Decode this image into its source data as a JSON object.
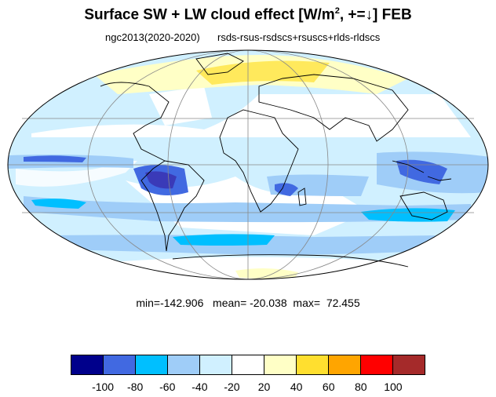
{
  "title": {
    "main": "Surface SW + LW cloud effect [W/m",
    "sup": "2",
    "rest": ", +=↓]  FEB"
  },
  "subtitle": {
    "left": "ngc2013(2020-2020)",
    "right": "rsds-rsus-rsdscs+rsuscs+rlds-rldscs"
  },
  "stats": {
    "min_label": "min=",
    "min": "-142.906",
    "mean_label": "mean=",
    "mean": "-20.038",
    "max_label": "max=",
    "max": "72.455"
  },
  "colorbar": {
    "colors": [
      "#00008b",
      "#4169e1",
      "#00bfff",
      "#9fcdf8",
      "#d0f0ff",
      "#ffffff",
      "#ffffc6",
      "#ffdf2f",
      "#ffa500",
      "#ff0000",
      "#a52a2a"
    ],
    "labels": [
      "-100",
      "-80",
      "-60",
      "-40",
      "-20",
      "20",
      "40",
      "60",
      "80",
      "100"
    ]
  },
  "map": {
    "projection": "Mollweide",
    "ocean_color": "#ffffff",
    "grid_color": "#888888",
    "coast_color": "#000000"
  }
}
